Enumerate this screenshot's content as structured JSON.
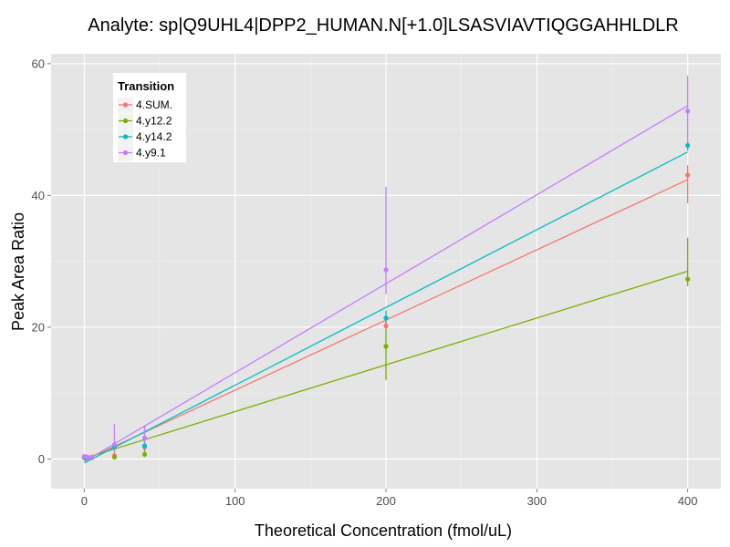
{
  "chart_data": {
    "type": "scatter",
    "title": "Analyte: sp|Q9UHL4|DPP2_HUMAN.N[+1.0]LSASVIAVTIQGGAHHLDLR",
    "xlabel": "Theoretical Concentration (fmol/uL)",
    "ylabel": "Peak Area Ratio",
    "xlim": [
      -22,
      422
    ],
    "ylim": [
      -4.5,
      61.5
    ],
    "xticks": [
      0,
      100,
      200,
      300,
      400
    ],
    "yticks": [
      0,
      20,
      40,
      60
    ],
    "grid": true,
    "background": "#e5e5e5",
    "legend": {
      "title": "Transition",
      "placement": "top-left"
    },
    "series": [
      {
        "name": "4.SUM.",
        "color": "#f8766d",
        "points": [
          {
            "x": 0,
            "y": 0.3,
            "ymin": 0.1,
            "ymax": 0.6
          },
          {
            "x": 1,
            "y": 0.3,
            "ymin": 0.1,
            "ymax": 0.6
          },
          {
            "x": 2,
            "y": 0.2,
            "ymin": 0.0,
            "ymax": 0.5
          },
          {
            "x": 5,
            "y": 0.3,
            "ymin": 0.1,
            "ymax": 0.6
          },
          {
            "x": 20,
            "y": 0.5,
            "ymin": 0.2,
            "ymax": 1.4
          },
          {
            "x": 40,
            "y": 1.8,
            "ymin": 1.0,
            "ymax": 3.2
          },
          {
            "x": 200,
            "y": 20.2,
            "ymin": 19.5,
            "ymax": 21.8
          },
          {
            "x": 400,
            "y": 43.1,
            "ymin": 38.8,
            "ymax": 44.6
          }
        ],
        "fit": [
          [
            0,
            -0.2
          ],
          [
            400,
            42.4
          ]
        ]
      },
      {
        "name": "4.y12.2",
        "color": "#7cae00",
        "points": [
          {
            "x": 0,
            "y": 0.2,
            "ymin": 0.0,
            "ymax": 0.5
          },
          {
            "x": 1,
            "y": 0.2,
            "ymin": 0.0,
            "ymax": 0.4
          },
          {
            "x": 2,
            "y": 0.3,
            "ymin": 0.1,
            "ymax": 0.5
          },
          {
            "x": 5,
            "y": 0.2,
            "ymin": 0.0,
            "ymax": 0.6
          },
          {
            "x": 20,
            "y": 0.3,
            "ymin": 0.1,
            "ymax": 0.8
          },
          {
            "x": 40,
            "y": 0.7,
            "ymin": 0.3,
            "ymax": 1.2
          },
          {
            "x": 200,
            "y": 17.1,
            "ymin": 12.0,
            "ymax": 19.6
          },
          {
            "x": 400,
            "y": 27.3,
            "ymin": 26.2,
            "ymax": 33.6
          }
        ],
        "fit": [
          [
            0,
            0.1
          ],
          [
            400,
            28.5
          ]
        ]
      },
      {
        "name": "4.y14.2",
        "color": "#00bfc4",
        "points": [
          {
            "x": 0,
            "y": 0.3,
            "ymin": 0.1,
            "ymax": 0.6
          },
          {
            "x": 1,
            "y": 0.3,
            "ymin": 0.1,
            "ymax": 0.5
          },
          {
            "x": 2,
            "y": 0.2,
            "ymin": 0.0,
            "ymax": 0.4
          },
          {
            "x": 5,
            "y": 0.2,
            "ymin": 0.0,
            "ymax": 0.5
          },
          {
            "x": 20,
            "y": 1.9,
            "ymin": 1.2,
            "ymax": 2.6
          },
          {
            "x": 40,
            "y": 2.0,
            "ymin": 1.2,
            "ymax": 5.0
          },
          {
            "x": 200,
            "y": 21.4,
            "ymin": 20.6,
            "ymax": 22.5
          },
          {
            "x": 400,
            "y": 47.6,
            "ymin": 46.8,
            "ymax": 48.2
          }
        ],
        "fit": [
          [
            0,
            -0.6
          ],
          [
            400,
            46.6
          ]
        ]
      },
      {
        "name": "4.y9.1",
        "color": "#c77cff",
        "points": [
          {
            "x": 0,
            "y": 0.4,
            "ymin": 0.1,
            "ymax": 0.7
          },
          {
            "x": 1,
            "y": 0.3,
            "ymin": 0.1,
            "ymax": 0.6
          },
          {
            "x": 2,
            "y": 0.3,
            "ymin": 0.1,
            "ymax": 0.5
          },
          {
            "x": 5,
            "y": 0.3,
            "ymin": 0.1,
            "ymax": 0.6
          },
          {
            "x": 20,
            "y": 2.2,
            "ymin": 1.0,
            "ymax": 5.3
          },
          {
            "x": 40,
            "y": 3.2,
            "ymin": 2.0,
            "ymax": 5.0
          },
          {
            "x": 200,
            "y": 28.7,
            "ymin": 25.0,
            "ymax": 41.3
          },
          {
            "x": 400,
            "y": 52.8,
            "ymin": 48.0,
            "ymax": 58.2
          }
        ],
        "fit": [
          [
            0,
            -0.4
          ],
          [
            400,
            53.6
          ]
        ]
      }
    ]
  }
}
